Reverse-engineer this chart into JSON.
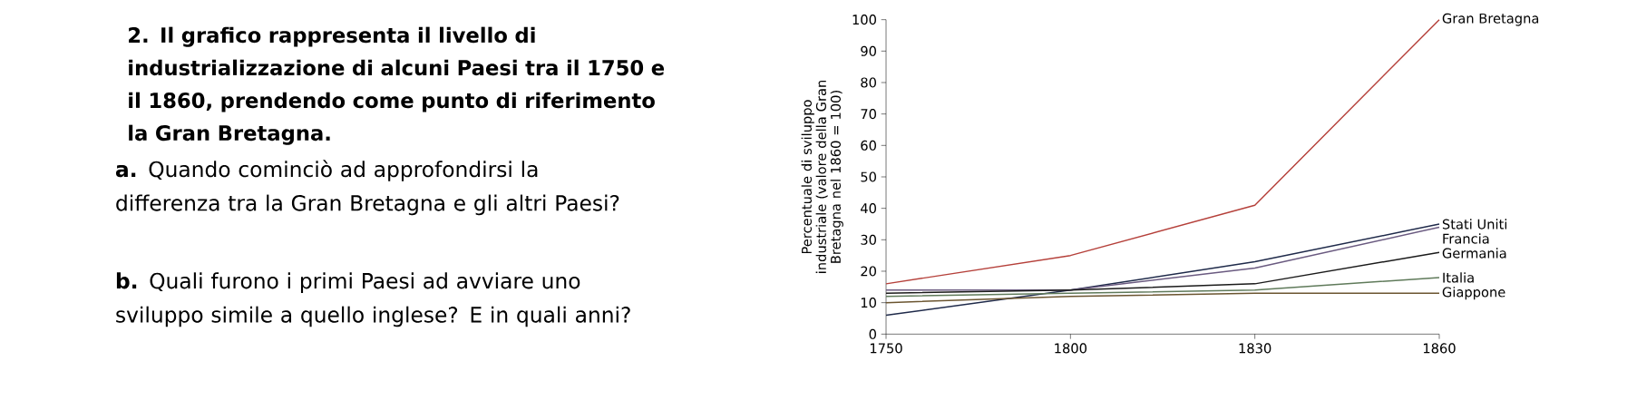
{
  "chart_data": {
    "type": "line",
    "ylabel": "Percentuale di sviluppo industriale (valore della Gran Bretagna nel 1860 = 100)",
    "categories": [
      "1750",
      "1800",
      "1830",
      "1860"
    ],
    "ylim": [
      0,
      100
    ],
    "yticks": [
      0,
      10,
      20,
      30,
      40,
      50,
      60,
      70,
      80,
      90,
      100
    ],
    "series": [
      {
        "name": "Gran Bretagna",
        "color": "#b5403a",
        "values": [
          16,
          25,
          41,
          100
        ]
      },
      {
        "name": "Stati Uniti",
        "color": "#1f2a4a",
        "values": [
          6,
          14,
          23,
          35
        ]
      },
      {
        "name": "Francia",
        "color": "#6a5a80",
        "values": [
          14,
          14,
          21,
          34
        ]
      },
      {
        "name": "Germania",
        "color": "#1a1a1a",
        "values": [
          13,
          14,
          16,
          26
        ]
      },
      {
        "name": "Italia",
        "color": "#5f7a5a",
        "values": [
          12,
          13,
          14,
          18
        ]
      },
      {
        "name": "Giappone",
        "color": "#6b5530",
        "values": [
          10,
          12,
          13,
          13
        ]
      }
    ],
    "grid": false,
    "legend": false,
    "marker": "none",
    "line_style": "solid",
    "annotations": [
      "2. Il grafico rappresenta il livello di industrializzazione di alcuni Paesi tra il 1750 e il 1860, prendendo come punto di riferimento la Gran Bretagna.",
      "**a.** Quando cominciò ad approfondirsi la differenza tra la Gran Bretagna e gli altri Paesi?",
      "**b.** Quali furono i primi Paesi ad avviare uno sviluppo simile a quello inglese? E in quali anni?"
    ]
  }
}
